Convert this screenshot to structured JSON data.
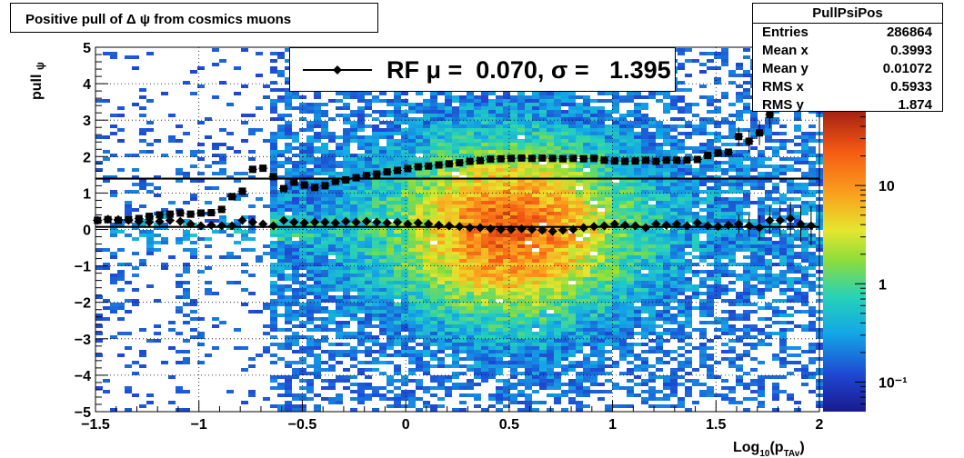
{
  "title": "Positive pull of Δ ψ from cosmics muons",
  "stats": {
    "name": "PullPsiPos",
    "rows": [
      {
        "label": "Entries",
        "value": "286864"
      },
      {
        "label": "Mean x",
        "value": "0.3993"
      },
      {
        "label": "Mean y",
        "value": "0.01072"
      },
      {
        "label": "RMS x",
        "value": "0.5933"
      },
      {
        "label": "RMS y",
        "value": "1.874"
      }
    ]
  },
  "legend": {
    "text": "RF μ =  0.070, σ =   1.395"
  },
  "colors": {
    "marker": "#000000",
    "fit_line": "#000000"
  },
  "chart_data": {
    "type": "heatmap",
    "title": "Positive pull of Δ ψ from cosmics muons",
    "xlabel": "Log10(pTAv)",
    "ylabel": "pull ψ",
    "xlim": [
      -1.5,
      2
    ],
    "ylim": [
      -5,
      5
    ],
    "x_ticks": [
      "−1.5",
      "−1",
      "−0.5",
      "0",
      "0.5",
      "1",
      "1.5",
      "2"
    ],
    "y_ticks": [
      "−5",
      "−4",
      "−3",
      "−2",
      "−1",
      "0",
      "1",
      "2",
      "3",
      "4",
      "5"
    ],
    "colorbar": {
      "scale": "log",
      "range": [
        0.05,
        60
      ],
      "tick_labels": [
        "10⁻¹",
        "1",
        "10"
      ]
    },
    "grid": true,
    "fit_lines": [
      {
        "name": "mean",
        "y": 0.07
      },
      {
        "name": "sigma",
        "y": 1.395
      }
    ],
    "series": [
      {
        "name": "sigma",
        "marker": "square",
        "x": [
          -1.49,
          -1.44,
          -1.39,
          -1.34,
          -1.29,
          -1.24,
          -1.19,
          -1.14,
          -1.09,
          -1.04,
          -0.99,
          -0.94,
          -0.89,
          -0.84,
          -0.79,
          -0.74,
          -0.69,
          -0.64,
          -0.59,
          -0.54,
          -0.49,
          -0.44,
          -0.39,
          -0.34,
          -0.29,
          -0.24,
          -0.19,
          -0.14,
          -0.09,
          -0.04,
          0.01,
          0.06,
          0.11,
          0.16,
          0.21,
          0.26,
          0.31,
          0.36,
          0.41,
          0.46,
          0.51,
          0.56,
          0.61,
          0.66,
          0.71,
          0.76,
          0.81,
          0.86,
          0.91,
          0.96,
          1.01,
          1.06,
          1.11,
          1.16,
          1.21,
          1.26,
          1.31,
          1.36,
          1.41,
          1.46,
          1.51,
          1.56,
          1.61,
          1.66,
          1.71,
          1.76,
          1.81,
          1.86,
          1.91
        ],
        "values": [
          0.25,
          0.27,
          0.25,
          0.27,
          0.3,
          0.36,
          0.4,
          0.42,
          0.45,
          0.42,
          0.45,
          0.46,
          0.55,
          0.9,
          1.05,
          1.65,
          1.68,
          1.45,
          1.12,
          1.3,
          1.22,
          1.15,
          1.2,
          1.32,
          1.36,
          1.42,
          1.48,
          1.52,
          1.58,
          1.62,
          1.67,
          1.72,
          1.74,
          1.77,
          1.8,
          1.83,
          1.87,
          1.89,
          1.93,
          1.94,
          1.95,
          1.96,
          1.95,
          1.96,
          1.95,
          1.94,
          1.95,
          1.94,
          1.95,
          1.9,
          1.88,
          1.87,
          1.88,
          1.9,
          1.87,
          1.9,
          1.9,
          1.9,
          1.92,
          2.03,
          2.1,
          2.12,
          2.55,
          2.42,
          2.65,
          3.15,
          3.8,
          3.8,
          3.95
        ]
      },
      {
        "name": "mean",
        "marker": "diamond",
        "x": [
          -1.49,
          -1.44,
          -1.39,
          -1.34,
          -1.29,
          -1.24,
          -1.19,
          -1.14,
          -1.09,
          -1.04,
          -0.99,
          -0.94,
          -0.89,
          -0.84,
          -0.79,
          -0.74,
          -0.69,
          -0.64,
          -0.59,
          -0.54,
          -0.49,
          -0.44,
          -0.39,
          -0.34,
          -0.29,
          -0.24,
          -0.19,
          -0.14,
          -0.09,
          -0.04,
          0.01,
          0.06,
          0.11,
          0.16,
          0.21,
          0.26,
          0.31,
          0.36,
          0.41,
          0.46,
          0.51,
          0.56,
          0.61,
          0.66,
          0.71,
          0.76,
          0.81,
          0.86,
          0.91,
          0.96,
          1.01,
          1.06,
          1.11,
          1.16,
          1.21,
          1.26,
          1.31,
          1.36,
          1.41,
          1.46,
          1.51,
          1.56,
          1.61,
          1.66,
          1.71,
          1.76,
          1.81,
          1.86,
          1.91,
          1.96
        ],
        "values": [
          0.25,
          0.28,
          0.27,
          0.25,
          0.22,
          0.2,
          0.22,
          0.25,
          0.22,
          0.15,
          0.1,
          0.12,
          0.1,
          0.1,
          0.25,
          0.2,
          0.15,
          0.1,
          0.25,
          0.2,
          0.18,
          0.2,
          0.2,
          0.18,
          0.22,
          0.2,
          0.22,
          0.2,
          0.18,
          0.2,
          0.15,
          0.18,
          0.15,
          0.12,
          0.1,
          0.08,
          0.05,
          0.05,
          0.02,
          0.0,
          0.0,
          0.02,
          0.0,
          -0.02,
          -0.05,
          -0.02,
          0.0,
          0.05,
          0.08,
          0.1,
          0.15,
          0.12,
          0.1,
          0.05,
          0.15,
          0.12,
          0.15,
          0.1,
          0.18,
          0.1,
          0.08,
          0.12,
          0.15,
          0.1,
          0.05,
          0.25,
          0.25,
          0.3,
          0.15,
          0.1
        ]
      }
    ]
  }
}
